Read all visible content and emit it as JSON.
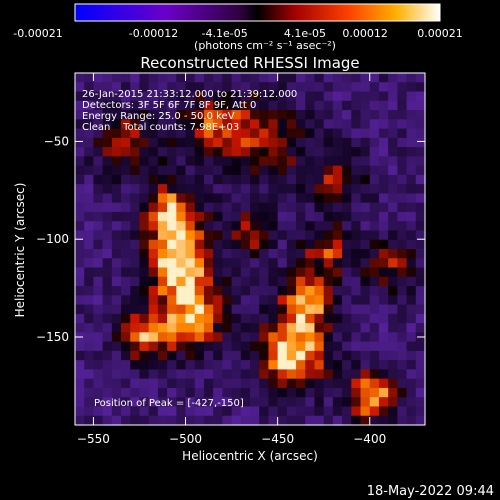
{
  "colorbar": {
    "tick_labels": [
      "-0.00021",
      "-0.00012",
      "-4.1e-05",
      "4.1e-05",
      "0.00012",
      "0.00021"
    ],
    "unit_label": "(photons cm⁻² s⁻¹ asec⁻²)"
  },
  "title": "Reconstructed RHESSI Image",
  "info_lines": [
    "26-Jan-2015 21:33:12.000 to 21:39:12.000",
    "Detectors: 3F 5F 6F 7F 8F 9F, Att 0",
    "Energy Range: 25.0 - 50.0 keV",
    "Clean    Total counts: 7.98E+03"
  ],
  "peak_text": "Position of Peak = [-427,-150]",
  "footer_timestamp": "18-May-2022 09:44",
  "chart_data": {
    "type": "heatmap",
    "title": "Reconstructed RHESSI Image",
    "xlabel": "Heliocentric X (arcsec)",
    "ylabel": "Heliocentric Y (arcsec)",
    "xlim": [
      -560,
      -370
    ],
    "ylim": [
      -195,
      -15
    ],
    "x_ticks": [
      -550,
      -500,
      -450,
      -400
    ],
    "y_ticks": [
      -50,
      -100,
      -150
    ],
    "colorbar_range": [
      -0.00021,
      0.00021
    ],
    "peak_position": [
      -427,
      -150
    ],
    "colors": {
      "negative": "#5a2aa0",
      "zero": "#000000",
      "positive_low": "#c01000",
      "positive_mid": "#ff7a00",
      "positive_high": "#ffffff"
    }
  }
}
